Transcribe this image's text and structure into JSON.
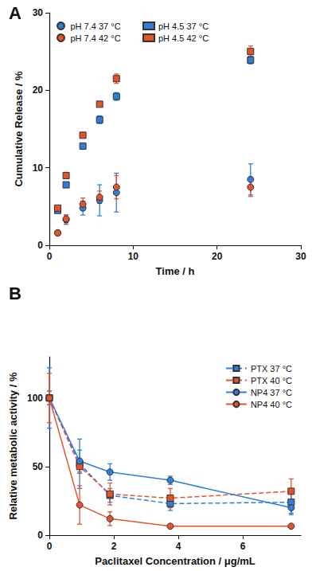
{
  "chart_data": [
    {
      "type": "scatter",
      "title": "A",
      "xlabel": "Time / h",
      "ylabel": "Cumulative Release / %",
      "x": [
        1,
        2,
        4,
        6,
        8,
        24
      ],
      "xlim": [
        0,
        30
      ],
      "xticks": [
        0,
        10,
        20,
        30
      ],
      "ylim": [
        0,
        30
      ],
      "yticks": [
        0,
        10,
        20,
        30
      ],
      "grid": false,
      "legend": "upper left",
      "series": [
        {
          "name": "pH 7.4 37 °C",
          "color": "#2f7fd6",
          "marker": "circle",
          "values": [
            1.6,
            3.3,
            4.8,
            5.8,
            6.8,
            8.5
          ],
          "errors": [
            0.2,
            0.6,
            0.9,
            2.0,
            2.5,
            2.0
          ]
        },
        {
          "name": "pH 7.4 42 °C",
          "color": "#e4532b",
          "marker": "circle",
          "values": [
            1.6,
            3.4,
            5.3,
            6.2,
            7.5,
            7.5
          ],
          "errors": [
            0.2,
            0.5,
            0.8,
            0.8,
            1.5,
            1.2
          ]
        },
        {
          "name": "pH 4.5 37 °C",
          "color": "#2f7fd6",
          "marker": "square",
          "values": [
            4.5,
            7.8,
            12.8,
            16.2,
            19.2,
            23.9
          ],
          "errors": [
            0.2,
            0.3,
            0.3,
            0.5,
            0.5,
            0.5
          ]
        },
        {
          "name": "pH 4.5 42 °C",
          "color": "#e4532b",
          "marker": "square",
          "values": [
            4.8,
            9.0,
            14.2,
            18.2,
            21.5,
            25.0
          ],
          "errors": [
            0.2,
            0.4,
            0.3,
            0.3,
            0.6,
            0.7
          ]
        }
      ]
    },
    {
      "type": "line",
      "title": "B",
      "xlabel": "Paclitaxel Concentration / μg/mL",
      "ylabel": "Relative metabolic activity / %",
      "x": [
        0,
        0.94,
        1.88,
        3.75,
        7.5
      ],
      "xlim": [
        0,
        7.8
      ],
      "xticks": [
        0,
        2,
        4,
        6
      ],
      "ylim": [
        0,
        130
      ],
      "yticks": [
        0,
        50,
        100
      ],
      "grid": false,
      "legend": "upper right",
      "series": [
        {
          "name": "PTX 37 °C",
          "color": "#2f7fd6",
          "marker": "square",
          "line_style": "dashed",
          "values": [
            100,
            52,
            29,
            23,
            24
          ],
          "errors": [
            5,
            18,
            5,
            5,
            8
          ]
        },
        {
          "name": "PTX 40 °C",
          "color": "#e4532b",
          "marker": "square",
          "line_style": "dashed",
          "values": [
            100,
            50,
            30,
            27,
            32
          ],
          "errors": [
            5,
            5,
            8,
            7,
            9
          ]
        },
        {
          "name": "NP4 37 °C",
          "color": "#2f7fd6",
          "marker": "circle",
          "line_style": "solid",
          "values": [
            100,
            54,
            46,
            40,
            20
          ],
          "errors": [
            22,
            8,
            6,
            3,
            5
          ]
        },
        {
          "name": "NP4 40 °C",
          "color": "#e4532b",
          "marker": "circle",
          "line_style": "solid",
          "values": [
            100,
            22,
            12,
            6.5,
            6.5
          ],
          "errors": [
            18,
            14,
            5,
            1,
            1
          ]
        }
      ]
    }
  ]
}
